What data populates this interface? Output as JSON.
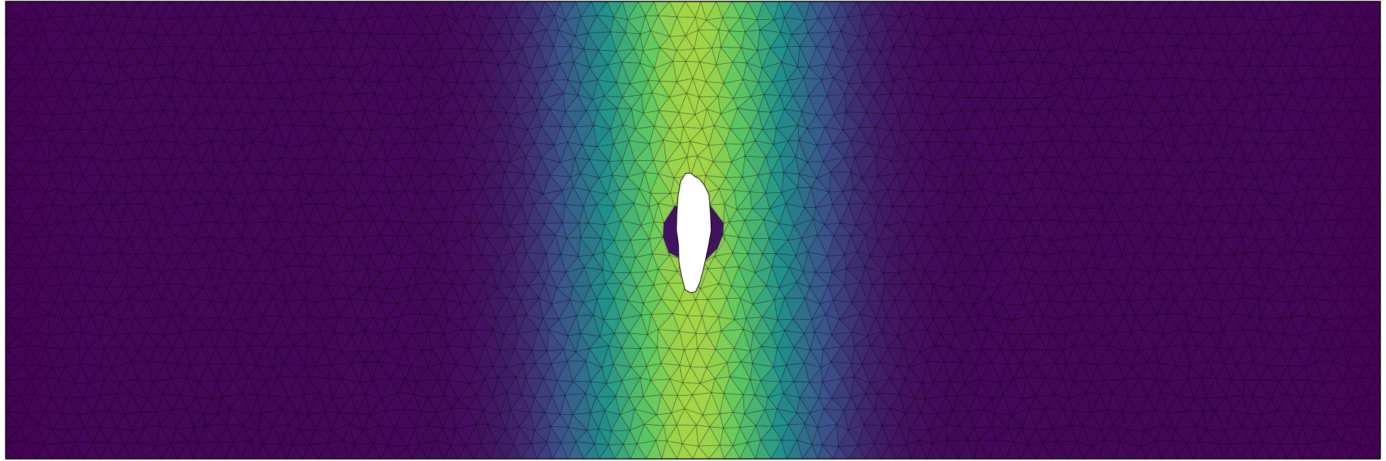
{
  "figure": {
    "colormap": "viridis",
    "colormap_stops": [
      "#440154",
      "#3b528b",
      "#21918c",
      "#5ec962",
      "#fde725"
    ],
    "value_range": [
      0,
      1
    ],
    "field_profile": {
      "description_free": true,
      "x_center": 0.5,
      "peak_value": 0.86,
      "base_value": 0.02,
      "width": 0.085
    },
    "mesh": {
      "element_type": "triangle",
      "edge_color": "#000000",
      "edge_opacity": 0.35
    },
    "domain": {
      "x_range": [
        0,
        3
      ],
      "y_range": [
        0,
        1
      ]
    },
    "hole": {
      "center": [
        1.5,
        0.5
      ],
      "approx_radius": 0.065
    },
    "border_color": "#000000",
    "background": "#ffffff"
  }
}
